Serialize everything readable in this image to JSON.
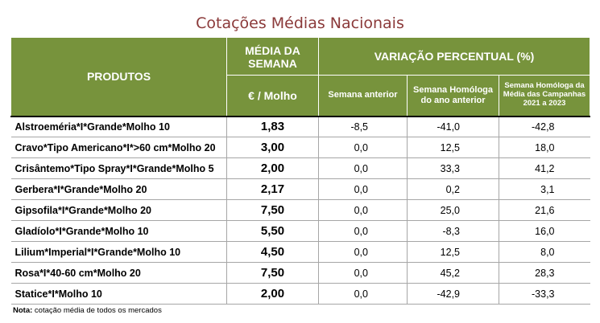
{
  "title": "Cotações Médias Nacionais",
  "headers": {
    "produtos": "PRODUTOS",
    "media_semana": "MÉDIA DA SEMANA",
    "unidade": "€ / Molho",
    "variacao": "VARIAÇÃO PERCENTUAL (%)",
    "semana_anterior": "Semana anterior",
    "semana_homologa": "Semana Homóloga do ano anterior",
    "semana_homologa_media": "Semana Homóloga da Média das Campanhas 2021 a 2023"
  },
  "rows": [
    {
      "produto": "Alstroeméria*I*Grande*Molho 10",
      "media": "1,83",
      "anterior": "-8,5",
      "homologa": "-41,0",
      "homologa_media": "-42,8"
    },
    {
      "produto": "Cravo*Tipo Americano*I*>60 cm*Molho 20",
      "media": "3,00",
      "anterior": "0,0",
      "homologa": "12,5",
      "homologa_media": "18,0"
    },
    {
      "produto": "Crisântemo*Tipo Spray*I*Grande*Molho 5",
      "media": "2,00",
      "anterior": "0,0",
      "homologa": "33,3",
      "homologa_media": "41,2"
    },
    {
      "produto": "Gerbera*I*Grande*Molho 20",
      "media": "2,17",
      "anterior": "0,0",
      "homologa": "0,2",
      "homologa_media": "3,1"
    },
    {
      "produto": "Gipsofila*I*Grande*Molho 20",
      "media": "7,50",
      "anterior": "0,0",
      "homologa": "25,0",
      "homologa_media": "21,6"
    },
    {
      "produto": "Gladíolo*I*Grande*Molho 10",
      "media": "5,50",
      "anterior": "0,0",
      "homologa": "-8,3",
      "homologa_media": "16,0"
    },
    {
      "produto": "Lilium*Imperial*I*Grande*Molho 10",
      "media": "4,50",
      "anterior": "0,0",
      "homologa": "12,5",
      "homologa_media": "8,0"
    },
    {
      "produto": "Rosa*I*40-60 cm*Molho 20",
      "media": "7,50",
      "anterior": "0,0",
      "homologa": "45,2",
      "homologa_media": "28,3"
    },
    {
      "produto": "Statice*I*Molho 10",
      "media": "2,00",
      "anterior": "0,0",
      "homologa": "-42,9",
      "homologa_media": "-33,3"
    }
  ],
  "note": {
    "label": "Nota:",
    "text": " cotação média de todos os mercados"
  },
  "colors": {
    "title": "#8b3a3a",
    "header_bg": "#77933c"
  }
}
